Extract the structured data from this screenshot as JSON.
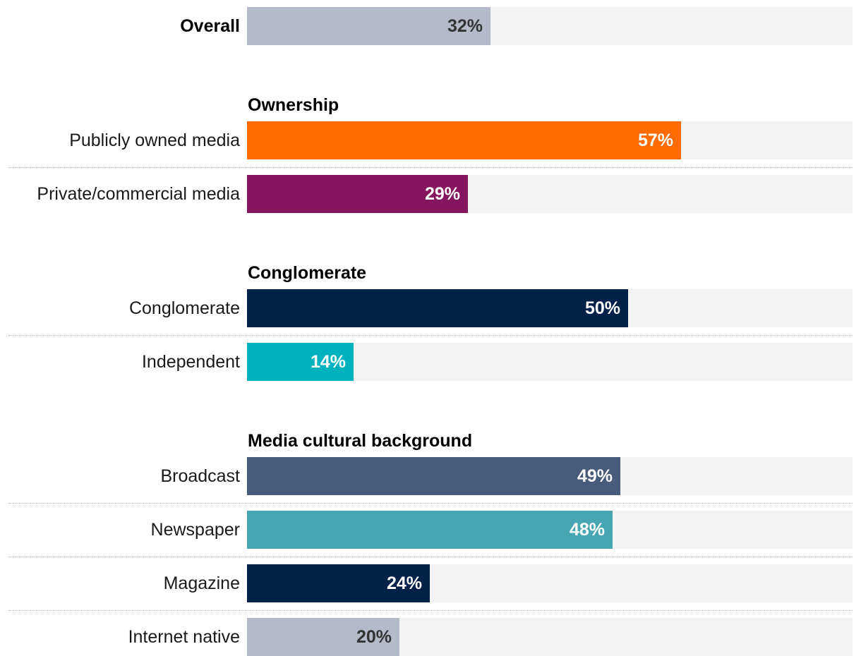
{
  "chart_data": {
    "type": "bar",
    "orientation": "horizontal",
    "xlim": [
      0,
      100
    ],
    "value_format": "percent",
    "groups": [
      {
        "title": "",
        "rows": [
          {
            "label": "Overall",
            "value": 32,
            "value_label": "32%",
            "color": "#b4bac7",
            "text_color": "#333333",
            "bold": true
          }
        ]
      },
      {
        "title": "Ownership",
        "rows": [
          {
            "label": "Publicly owned media",
            "value": 57,
            "value_label": "57%",
            "color": "#ff6b00",
            "text_color": "#ffffff"
          },
          {
            "label": "Private/commercial media",
            "value": 29,
            "value_label": "29%",
            "color": "#84155e",
            "text_color": "#ffffff"
          }
        ]
      },
      {
        "title": "Conglomerate",
        "rows": [
          {
            "label": "Conglomerate",
            "value": 50,
            "value_label": "50%",
            "color": "#022149",
            "text_color": "#ffffff"
          },
          {
            "label": "Independent",
            "value": 14,
            "value_label": "14%",
            "color": "#00b2be",
            "text_color": "#ffffff"
          }
        ]
      },
      {
        "title": "Media cultural background",
        "rows": [
          {
            "label": "Broadcast",
            "value": 49,
            "value_label": "49%",
            "color": "#475c7a",
            "text_color": "#ffffff"
          },
          {
            "label": "Newspaper",
            "value": 48,
            "value_label": "48%",
            "color": "#48a6b3",
            "text_color": "#ffffff"
          },
          {
            "label": "Magazine",
            "value": 24,
            "value_label": "24%",
            "color": "#022149",
            "text_color": "#ffffff"
          },
          {
            "label": "Internet native",
            "value": 20,
            "value_label": "20%",
            "color": "#b4bac7",
            "text_color": "#333333"
          }
        ]
      }
    ]
  }
}
